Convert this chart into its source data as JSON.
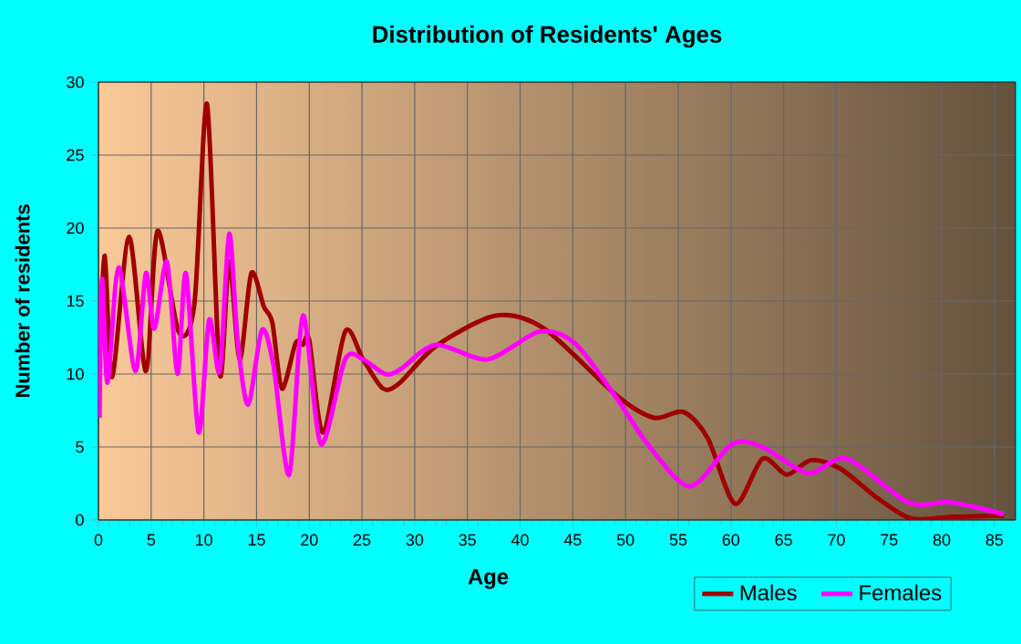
{
  "chart_data": {
    "type": "line",
    "title": "Distribution of Residents' Ages",
    "xlabel": "Age",
    "ylabel": "Number of residents",
    "xlim": [
      0,
      87
    ],
    "ylim": [
      0,
      30
    ],
    "xticks": [
      0,
      5,
      10,
      15,
      20,
      25,
      30,
      35,
      40,
      45,
      50,
      55,
      60,
      65,
      70,
      75,
      80,
      85
    ],
    "yticks": [
      0,
      5,
      10,
      15,
      20,
      25,
      30
    ],
    "grid": true,
    "legend": "bottom right",
    "series": [
      {
        "name": "Males",
        "color": "#a00000",
        "x": [
          0.1,
          0.6,
          1.3,
          2.9,
          4.5,
          5.6,
          7.6,
          9.1,
          10.3,
          11.5,
          12.4,
          13.4,
          14.5,
          15.7,
          16.5,
          17.4,
          18.7,
          19.4,
          20.0,
          21.3,
          23.4,
          25.1,
          27.0,
          28.6,
          32,
          37.7,
          42.3,
          49.2,
          52.7,
          55.5,
          57.8,
          60.4,
          63,
          65.3,
          67.6,
          70.4,
          73.9,
          77.1,
          80.7,
          85.9
        ],
        "values": [
          11.0,
          18.1,
          9.8,
          19.4,
          10.2,
          19.8,
          12.9,
          14.8,
          28.5,
          10.0,
          17.7,
          11.0,
          16.9,
          14.6,
          13.5,
          9.0,
          12.1,
          12.0,
          12.3,
          6.0,
          12.9,
          11.0,
          9.0,
          9.4,
          11.9,
          14.0,
          13.1,
          8.5,
          7.0,
          7.4,
          5.6,
          1.1,
          4.2,
          3.1,
          4.1,
          3.5,
          1.5,
          0.1,
          0.2,
          0.3
        ]
      },
      {
        "name": "Females",
        "color": "#ff00ff",
        "x": [
          0.1,
          0.34,
          0.86,
          1.9,
          3.5,
          4.5,
          5.3,
          6.5,
          7.5,
          8.3,
          9.5,
          10.5,
          11.5,
          12.4,
          13.2,
          14.2,
          15.5,
          16.6,
          18.1,
          19.4,
          21.1,
          23.4,
          25.1,
          27.2,
          28.6,
          32,
          36.9,
          41.8,
          45.2,
          49.2,
          52.1,
          56.1,
          60.1,
          63,
          67.3,
          71,
          76.8,
          80.8,
          85.9
        ],
        "values": [
          7.0,
          16.5,
          9.4,
          17.3,
          10.2,
          16.9,
          13.1,
          17.7,
          10.0,
          16.9,
          6.0,
          13.7,
          10.2,
          19.6,
          12.3,
          7.9,
          13.0,
          10.6,
          3.1,
          14.0,
          5.2,
          11.0,
          11.0,
          10.0,
          10.3,
          12.0,
          11.0,
          12.9,
          12.1,
          8.3,
          5.2,
          2.3,
          5.2,
          5.0,
          3.2,
          4.2,
          1.2,
          1.2,
          0.4
        ]
      }
    ]
  }
}
